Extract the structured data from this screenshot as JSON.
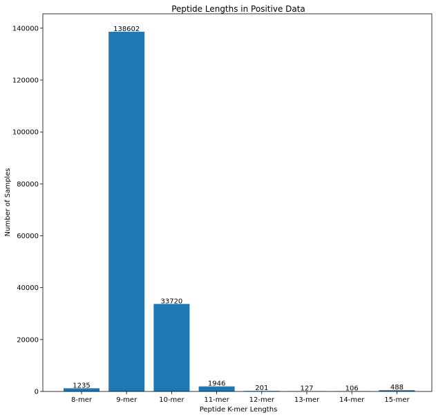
{
  "chart_data": {
    "type": "bar",
    "title": "Peptide Lengths in Positive Data",
    "xlabel": "Peptide K-mer Lengths",
    "ylabel": "Number of Samples",
    "categories": [
      "8-mer",
      "9-mer",
      "10-mer",
      "11-mer",
      "12-mer",
      "13-mer",
      "14-mer",
      "15-mer"
    ],
    "values": [
      1235,
      138602,
      33720,
      1946,
      201,
      127,
      106,
      488
    ],
    "data_labels": [
      "1235",
      "138602",
      "33720",
      "1946",
      "201",
      "127",
      "106",
      "488"
    ],
    "ylim": [
      0,
      145530
    ],
    "yticks": [
      0,
      20000,
      40000,
      60000,
      80000,
      100000,
      120000,
      140000
    ],
    "ytick_labels": [
      "0",
      "20000",
      "40000",
      "60000",
      "80000",
      "100000",
      "120000",
      "140000"
    ],
    "bar_color": "#1f77b4",
    "grid": false,
    "legend": "none"
  }
}
